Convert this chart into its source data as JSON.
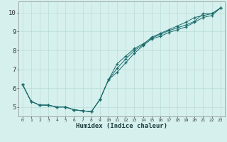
{
  "xlabel": "Humidex (Indice chaleur)",
  "background_color": "#d6f0ee",
  "grid_color": "#b8dcd8",
  "line_color": "#1a6b6b",
  "marker_color": "#1a6b6b",
  "xlim": [
    -0.5,
    23.5
  ],
  "ylim": [
    4.5,
    10.6
  ],
  "yticks": [
    5,
    6,
    7,
    8,
    9,
    10
  ],
  "xticks": [
    0,
    1,
    2,
    3,
    4,
    5,
    6,
    7,
    8,
    9,
    10,
    11,
    12,
    13,
    14,
    15,
    16,
    17,
    18,
    19,
    20,
    21,
    22,
    23
  ],
  "series1_x": [
    0,
    1,
    2,
    3,
    4,
    5,
    6,
    7,
    8,
    9,
    10,
    11,
    12,
    13,
    14,
    15,
    16,
    17,
    18,
    19,
    20,
    21,
    22,
    23
  ],
  "series1_y": [
    6.2,
    5.3,
    5.1,
    5.1,
    5.0,
    5.0,
    4.85,
    4.8,
    4.75,
    5.4,
    6.45,
    7.3,
    7.7,
    8.1,
    8.35,
    8.65,
    8.85,
    9.05,
    9.2,
    9.35,
    9.55,
    9.95,
    9.95,
    10.25
  ],
  "series2_x": [
    0,
    1,
    2,
    3,
    4,
    5,
    6,
    7,
    8,
    9,
    10,
    11,
    12,
    13,
    14,
    15,
    16,
    17,
    18,
    19,
    20,
    21,
    22,
    23
  ],
  "series2_y": [
    6.2,
    5.3,
    5.1,
    5.1,
    5.0,
    5.0,
    4.85,
    4.8,
    4.75,
    5.4,
    6.45,
    7.05,
    7.55,
    8.0,
    8.3,
    8.7,
    8.9,
    9.1,
    9.3,
    9.5,
    9.75,
    9.85,
    9.95,
    10.25
  ],
  "series3_x": [
    0,
    1,
    2,
    3,
    4,
    5,
    6,
    7,
    8,
    9,
    10,
    11,
    12,
    13,
    14,
    15,
    16,
    17,
    18,
    19,
    20,
    21,
    22,
    23
  ],
  "series3_y": [
    6.2,
    5.3,
    5.1,
    5.1,
    5.0,
    5.0,
    4.85,
    4.8,
    4.75,
    5.4,
    6.45,
    6.85,
    7.35,
    7.85,
    8.25,
    8.6,
    8.75,
    8.95,
    9.1,
    9.25,
    9.5,
    9.75,
    9.85,
    10.25
  ]
}
